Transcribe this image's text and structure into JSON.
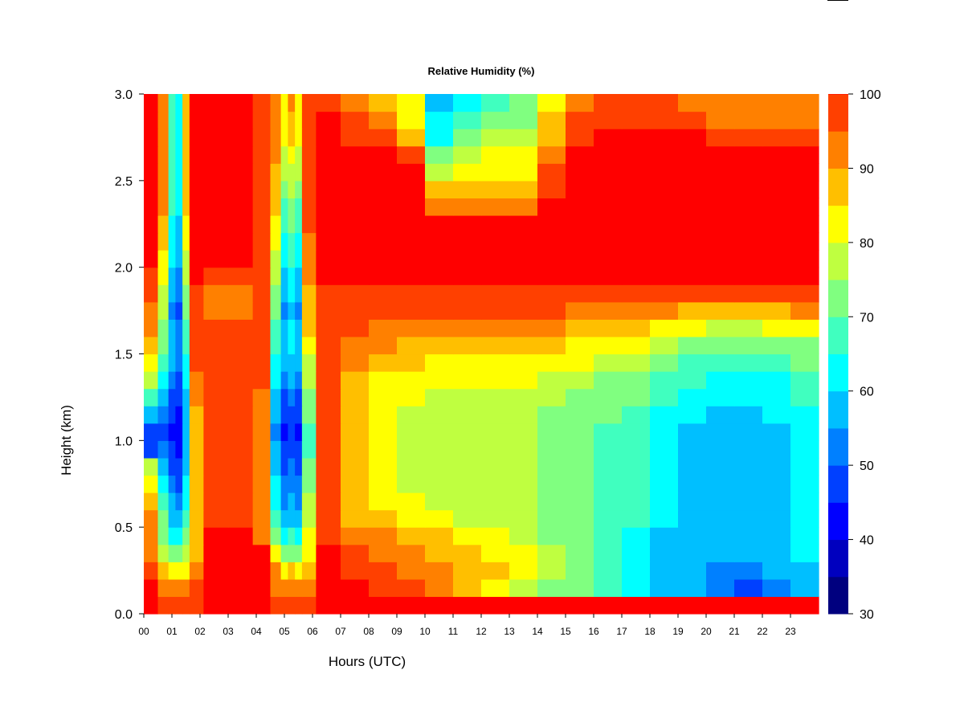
{
  "chart_data": {
    "type": "heatmap",
    "title": "Relative Humidity (%)",
    "xlabel": "Hours (UTC)",
    "ylabel": "Height (km)",
    "xlim": [
      0,
      24
    ],
    "ylim": [
      0.0,
      3.0
    ],
    "x_ticks": [
      "00",
      "01",
      "02",
      "03",
      "04",
      "05",
      "06",
      "07",
      "08",
      "09",
      "10",
      "11",
      "12",
      "13",
      "14",
      "15",
      "16",
      "17",
      "18",
      "19",
      "20",
      "21",
      "22",
      "23"
    ],
    "y_ticks": [
      "0.0",
      "0.5",
      "1.0",
      "1.5",
      "2.0",
      "2.5",
      "3.0"
    ],
    "colorbar": {
      "range": [
        30,
        100
      ],
      "step": 5,
      "tick_labels": [
        "30",
        "40",
        "50",
        "60",
        "70",
        "80",
        "90",
        "100"
      ],
      "colors": [
        "#00007f",
        "#0000bf",
        "#0000ff",
        "#0040ff",
        "#0080ff",
        "#00bfff",
        "#00ffff",
        "#40ffbf",
        "#80ff80",
        "#bfff40",
        "#ffff00",
        "#ffbf00",
        "#ff8000",
        "#ff4000",
        "#ff0000",
        "#7f0000"
      ]
    },
    "height_km": [
      0.05,
      0.15,
      0.25,
      0.35,
      0.45,
      0.55,
      0.65,
      0.75,
      0.85,
      0.95,
      1.05,
      1.15,
      1.25,
      1.35,
      1.45,
      1.55,
      1.65,
      1.75,
      1.85,
      1.95,
      2.05,
      2.15,
      2.25,
      2.35,
      2.45,
      2.55,
      2.65,
      2.75,
      2.85,
      2.95
    ],
    "time_utc": [
      "00:15",
      "00:45",
      "01:00",
      "01:15",
      "01:30",
      "01:45",
      "02:30",
      "03:30",
      "04:15",
      "04:45",
      "05:00",
      "05:15",
      "05:30",
      "05:45",
      "06:30",
      "07:30",
      "08:30",
      "09:30",
      "10:30",
      "11:30",
      "12:30",
      "13:30",
      "14:30",
      "15:30",
      "16:30",
      "17:30",
      "18:30",
      "19:30",
      "20:30",
      "21:30",
      "22:30",
      "23:30"
    ],
    "rh": [
      [
        100,
        95,
        97,
        97,
        97,
        97,
        100,
        100,
        100,
        97,
        97,
        97,
        97,
        97,
        100,
        100,
        100,
        100,
        100,
        100,
        100,
        100,
        100,
        100,
        100,
        100,
        100,
        100,
        100,
        100,
        100,
        100
      ],
      [
        100,
        92,
        90,
        90,
        92,
        95,
        100,
        100,
        100,
        92,
        92,
        92,
        92,
        92,
        100,
        100,
        97,
        95,
        90,
        85,
        80,
        75,
        72,
        70,
        65,
        60,
        57,
        55,
        50,
        48,
        50,
        55
      ],
      [
        95,
        85,
        80,
        80,
        82,
        90,
        100,
        100,
        100,
        90,
        80,
        85,
        80,
        88,
        100,
        97,
        95,
        92,
        90,
        88,
        85,
        82,
        75,
        70,
        65,
        60,
        58,
        55,
        52,
        52,
        55,
        58
      ],
      [
        92,
        78,
        70,
        70,
        75,
        88,
        100,
        100,
        100,
        80,
        70,
        72,
        70,
        82,
        100,
        95,
        92,
        90,
        88,
        85,
        82,
        80,
        75,
        70,
        65,
        62,
        58,
        55,
        55,
        55,
        57,
        60
      ],
      [
        90,
        72,
        60,
        60,
        70,
        85,
        100,
        100,
        92,
        70,
        62,
        65,
        62,
        80,
        97,
        92,
        90,
        88,
        85,
        82,
        80,
        78,
        72,
        70,
        65,
        62,
        58,
        55,
        55,
        55,
        57,
        60
      ],
      [
        92,
        70,
        58,
        55,
        65,
        85,
        95,
        95,
        90,
        65,
        55,
        58,
        55,
        78,
        95,
        88,
        85,
        82,
        80,
        78,
        75,
        75,
        72,
        70,
        68,
        65,
        62,
        58,
        55,
        55,
        58,
        62
      ],
      [
        88,
        68,
        55,
        52,
        62,
        85,
        95,
        95,
        90,
        62,
        52,
        55,
        52,
        75,
        95,
        85,
        82,
        80,
        78,
        75,
        75,
        75,
        72,
        70,
        68,
        66,
        62,
        58,
        55,
        55,
        58,
        62
      ],
      [
        82,
        62,
        50,
        48,
        60,
        88,
        95,
        95,
        92,
        60,
        50,
        52,
        50,
        72,
        95,
        85,
        80,
        78,
        75,
        75,
        75,
        75,
        72,
        70,
        68,
        66,
        62,
        58,
        55,
        55,
        58,
        62
      ],
      [
        75,
        58,
        48,
        45,
        58,
        88,
        95,
        95,
        92,
        58,
        48,
        50,
        48,
        70,
        95,
        85,
        80,
        78,
        75,
        75,
        75,
        75,
        72,
        70,
        68,
        66,
        62,
        58,
        55,
        55,
        58,
        62
      ],
      [
        45,
        50,
        45,
        42,
        55,
        88,
        95,
        95,
        92,
        55,
        45,
        48,
        45,
        68,
        95,
        85,
        80,
        78,
        75,
        75,
        75,
        75,
        72,
        70,
        68,
        66,
        62,
        58,
        55,
        55,
        58,
        62
      ],
      [
        45,
        48,
        42,
        40,
        55,
        88,
        95,
        95,
        92,
        52,
        42,
        48,
        42,
        68,
        95,
        85,
        80,
        78,
        75,
        75,
        75,
        75,
        72,
        70,
        68,
        66,
        62,
        58,
        55,
        55,
        58,
        62
      ],
      [
        55,
        50,
        45,
        42,
        55,
        88,
        95,
        95,
        92,
        55,
        45,
        48,
        45,
        70,
        95,
        85,
        80,
        78,
        76,
        76,
        76,
        76,
        74,
        72,
        70,
        68,
        64,
        60,
        57,
        57,
        60,
        64
      ],
      [
        65,
        55,
        45,
        45,
        58,
        90,
        95,
        95,
        92,
        58,
        48,
        52,
        48,
        72,
        95,
        86,
        82,
        80,
        78,
        78,
        78,
        78,
        76,
        74,
        72,
        70,
        66,
        62,
        60,
        60,
        62,
        65
      ],
      [
        75,
        60,
        50,
        48,
        60,
        92,
        95,
        95,
        95,
        60,
        52,
        55,
        52,
        75,
        95,
        88,
        84,
        82,
        80,
        80,
        80,
        80,
        78,
        76,
        74,
        72,
        68,
        65,
        62,
        62,
        64,
        67
      ],
      [
        82,
        65,
        55,
        50,
        62,
        95,
        95,
        95,
        95,
        62,
        55,
        58,
        55,
        78,
        97,
        90,
        88,
        85,
        84,
        84,
        84,
        84,
        82,
        80,
        78,
        76,
        72,
        68,
        66,
        66,
        68,
        70
      ],
      [
        88,
        70,
        58,
        52,
        65,
        97,
        95,
        95,
        97,
        65,
        58,
        60,
        58,
        82,
        97,
        92,
        90,
        88,
        88,
        88,
        88,
        88,
        86,
        84,
        82,
        80,
        76,
        72,
        70,
        70,
        72,
        74
      ],
      [
        90,
        72,
        55,
        50,
        68,
        97,
        95,
        95,
        97,
        68,
        55,
        60,
        55,
        85,
        97,
        95,
        92,
        92,
        92,
        92,
        92,
        92,
        90,
        88,
        88,
        86,
        82,
        80,
        78,
        78,
        80,
        82
      ],
      [
        92,
        75,
        52,
        48,
        70,
        97,
        92,
        92,
        97,
        70,
        52,
        58,
        52,
        85,
        97,
        95,
        95,
        95,
        95,
        95,
        95,
        95,
        95,
        92,
        92,
        92,
        90,
        88,
        86,
        86,
        88,
        90
      ],
      [
        95,
        78,
        55,
        50,
        72,
        97,
        92,
        92,
        97,
        72,
        55,
        60,
        55,
        88,
        97,
        97,
        97,
        97,
        97,
        97,
        97,
        97,
        97,
        97,
        97,
        97,
        97,
        95,
        95,
        95,
        95,
        95
      ],
      [
        97,
        80,
        58,
        52,
        75,
        100,
        95,
        95,
        97,
        75,
        58,
        62,
        58,
        90,
        100,
        100,
        100,
        100,
        100,
        100,
        100,
        100,
        100,
        100,
        100,
        100,
        100,
        100,
        100,
        100,
        100,
        100
      ],
      [
        100,
        82,
        60,
        55,
        78,
        100,
        100,
        100,
        97,
        78,
        60,
        65,
        60,
        92,
        100,
        100,
        100,
        100,
        100,
        100,
        100,
        100,
        100,
        100,
        100,
        100,
        100,
        100,
        100,
        100,
        100,
        100
      ],
      [
        100,
        85,
        62,
        58,
        80,
        100,
        100,
        100,
        97,
        80,
        62,
        68,
        62,
        92,
        100,
        100,
        100,
        100,
        100,
        100,
        100,
        100,
        100,
        100,
        100,
        100,
        100,
        100,
        100,
        100,
        100,
        100
      ],
      [
        100,
        88,
        62,
        58,
        82,
        100,
        100,
        100,
        97,
        82,
        65,
        70,
        65,
        95,
        100,
        100,
        100,
        100,
        100,
        100,
        100,
        100,
        100,
        100,
        100,
        100,
        100,
        100,
        100,
        100,
        100,
        100
      ],
      [
        100,
        90,
        65,
        60,
        85,
        100,
        100,
        100,
        97,
        85,
        68,
        72,
        68,
        95,
        100,
        100,
        100,
        100,
        92,
        92,
        92,
        92,
        100,
        100,
        100,
        100,
        100,
        100,
        100,
        100,
        100,
        100
      ],
      [
        100,
        92,
        65,
        60,
        85,
        100,
        100,
        100,
        97,
        88,
        72,
        75,
        72,
        97,
        100,
        100,
        100,
        100,
        85,
        88,
        88,
        88,
        97,
        100,
        100,
        100,
        100,
        100,
        100,
        100,
        100,
        100
      ],
      [
        100,
        92,
        65,
        60,
        85,
        100,
        100,
        100,
        97,
        88,
        75,
        78,
        75,
        97,
        100,
        100,
        100,
        100,
        78,
        82,
        84,
        84,
        95,
        100,
        100,
        100,
        100,
        100,
        100,
        100,
        100,
        100
      ],
      [
        100,
        92,
        65,
        60,
        85,
        100,
        100,
        100,
        97,
        90,
        78,
        82,
        78,
        97,
        100,
        100,
        100,
        95,
        70,
        75,
        80,
        80,
        92,
        100,
        100,
        100,
        100,
        100,
        100,
        100,
        100,
        100
      ],
      [
        100,
        92,
        65,
        60,
        85,
        100,
        100,
        100,
        97,
        92,
        80,
        85,
        80,
        97,
        100,
        97,
        95,
        88,
        64,
        70,
        76,
        76,
        88,
        97,
        100,
        100,
        100,
        100,
        97,
        97,
        97,
        97
      ],
      [
        100,
        92,
        65,
        60,
        85,
        100,
        100,
        100,
        97,
        92,
        82,
        88,
        82,
        97,
        100,
        95,
        90,
        84,
        60,
        66,
        72,
        72,
        85,
        95,
        97,
        97,
        97,
        97,
        94,
        94,
        94,
        94
      ],
      [
        100,
        92,
        65,
        60,
        85,
        100,
        100,
        100,
        97,
        94,
        84,
        90,
        84,
        97,
        97,
        92,
        88,
        80,
        57,
        62,
        68,
        70,
        82,
        92,
        96,
        96,
        96,
        94,
        92,
        92,
        92,
        92
      ]
    ]
  }
}
